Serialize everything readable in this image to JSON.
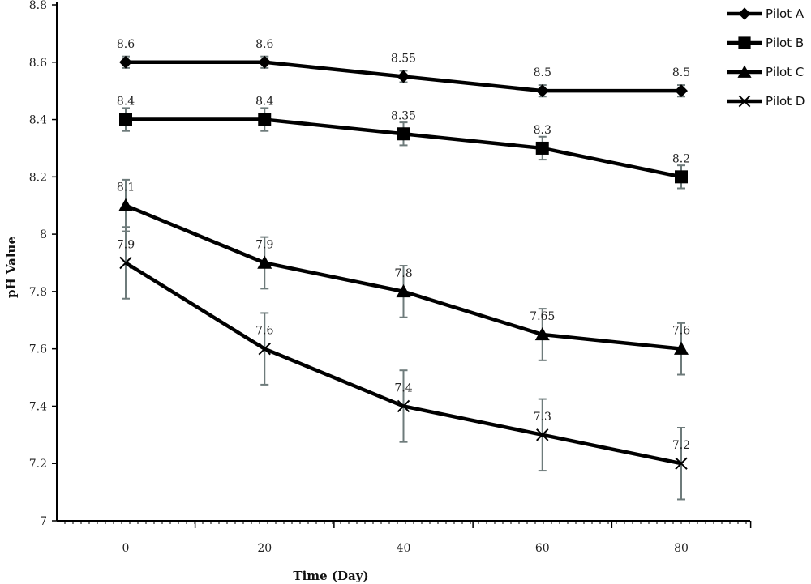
{
  "chart_data": {
    "type": "line",
    "title": "",
    "xlabel": "Time (Day)",
    "ylabel": "pH Value",
    "x": [
      0,
      20,
      40,
      60,
      80
    ],
    "x_tick_labels": [
      "0",
      "20",
      "40",
      "60",
      "80"
    ],
    "ylim": [
      7,
      8.8
    ],
    "y_ticks": [
      7,
      7.2,
      7.4,
      7.6,
      7.8,
      8,
      8.2,
      8.4,
      8.6,
      8.8
    ],
    "y_tick_labels": [
      "7",
      "7.2",
      "7.4",
      "7.6",
      "7.8",
      "8",
      "8.2",
      "8.4",
      "8.6",
      "8.8"
    ],
    "grid": false,
    "legend_position": "top-right",
    "series": [
      {
        "name": "Pilot A",
        "marker": "diamond",
        "values": [
          8.6,
          8.6,
          8.55,
          8.5,
          8.5
        ],
        "labels": [
          "8.6",
          "8.6",
          "8.55",
          "8.5",
          "8.5"
        ],
        "error": [
          0.02,
          0.02,
          0.02,
          0.02,
          0.02
        ]
      },
      {
        "name": "Pilot B",
        "marker": "square",
        "values": [
          8.4,
          8.4,
          8.35,
          8.3,
          8.2
        ],
        "labels": [
          "8.4",
          "8.4",
          "8.35",
          "8.3",
          "8.2"
        ],
        "error": [
          0.04,
          0.04,
          0.04,
          0.04,
          0.04
        ]
      },
      {
        "name": "Pilot C",
        "marker": "triangle",
        "values": [
          8.1,
          7.9,
          7.8,
          7.65,
          7.6
        ],
        "labels": [
          "8.1",
          "7.9",
          "7.8",
          "7.65",
          "7.6"
        ],
        "error": [
          0.09,
          0.09,
          0.09,
          0.09,
          0.09
        ]
      },
      {
        "name": "Pilot D",
        "marker": "x",
        "values": [
          7.9,
          7.6,
          7.4,
          7.3,
          7.2
        ],
        "labels": [
          "7.9",
          "7.6",
          "7.4",
          "7.3",
          "7.2"
        ],
        "error": [
          0.125,
          0.125,
          0.125,
          0.125,
          0.125
        ]
      }
    ],
    "colors": {
      "line": "#000000",
      "error_bar": "#6e7b7b",
      "axis": "#000000"
    }
  }
}
